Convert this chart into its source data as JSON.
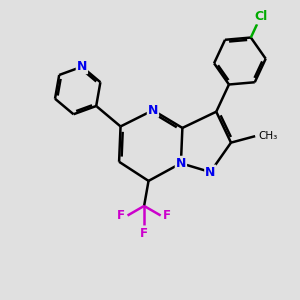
{
  "bg_color": "#e0e0e0",
  "bond_color": "#000000",
  "N_color": "#0000ee",
  "Cl_color": "#00aa00",
  "F_color": "#cc00cc",
  "bond_width": 1.8,
  "dbo": 0.08,
  "figsize": [
    3.0,
    3.0
  ],
  "dpi": 100,
  "xlim": [
    0,
    10
  ],
  "ylim": [
    0,
    10
  ]
}
